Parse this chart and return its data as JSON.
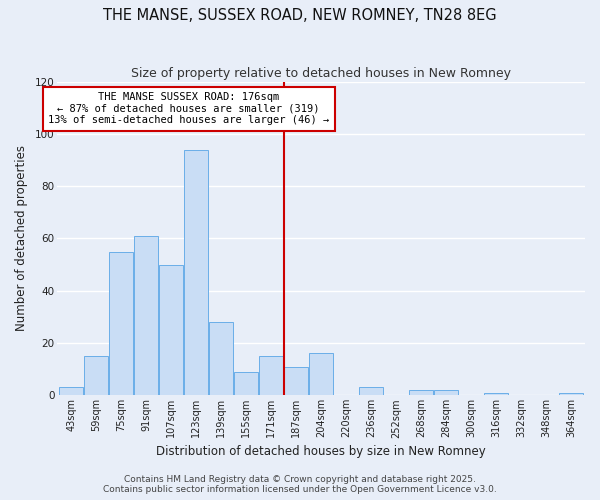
{
  "title": "THE MANSE, SUSSEX ROAD, NEW ROMNEY, TN28 8EG",
  "subtitle": "Size of property relative to detached houses in New Romney",
  "xlabel": "Distribution of detached houses by size in New Romney",
  "ylabel": "Number of detached properties",
  "bin_labels": [
    "43sqm",
    "59sqm",
    "75sqm",
    "91sqm",
    "107sqm",
    "123sqm",
    "139sqm",
    "155sqm",
    "171sqm",
    "187sqm",
    "204sqm",
    "220sqm",
    "236sqm",
    "252sqm",
    "268sqm",
    "284sqm",
    "300sqm",
    "316sqm",
    "332sqm",
    "348sqm",
    "364sqm"
  ],
  "bar_values": [
    3,
    15,
    55,
    61,
    50,
    94,
    28,
    9,
    15,
    11,
    16,
    0,
    3,
    0,
    2,
    2,
    0,
    1,
    0,
    0,
    1
  ],
  "bar_color": "#c9ddf5",
  "bar_edge_color": "#6aaee8",
  "vline_bin": 8,
  "vline_color": "#cc0000",
  "annotation_line1": "THE MANSE SUSSEX ROAD: 176sqm",
  "annotation_line2": "← 87% of detached houses are smaller (319)",
  "annotation_line3": "13% of semi-detached houses are larger (46) →",
  "annotation_box_color": "#cc0000",
  "ylim": [
    0,
    120
  ],
  "yticks": [
    0,
    20,
    40,
    60,
    80,
    100,
    120
  ],
  "footer1": "Contains HM Land Registry data © Crown copyright and database right 2025.",
  "footer2": "Contains public sector information licensed under the Open Government Licence v3.0.",
  "bg_color": "#e8eef8",
  "grid_color": "#ffffff",
  "title_fontsize": 10.5,
  "subtitle_fontsize": 9,
  "axis_label_fontsize": 8.5,
  "tick_fontsize": 7,
  "footer_fontsize": 6.5,
  "annotation_fontsize": 7.5
}
